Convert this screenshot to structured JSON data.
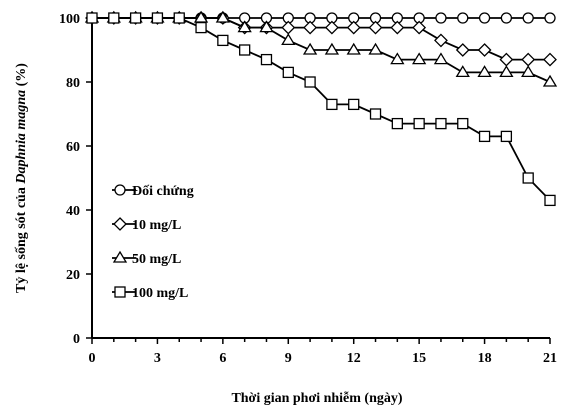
{
  "chart_data": {
    "type": "line",
    "xlabel": "Thời gian phơi nhiễm (ngày)",
    "ylabel_parts": [
      "Tỷ lệ sống sót của ",
      "Daphnia magna",
      " (%)"
    ],
    "xlim": [
      0,
      21
    ],
    "ylim": [
      0,
      100
    ],
    "xticks": [
      0,
      3,
      6,
      9,
      12,
      15,
      18,
      21
    ],
    "yticks": [
      0,
      20,
      40,
      60,
      80,
      100
    ],
    "grid": false,
    "legend_position": "middle-left",
    "series": [
      {
        "name": "Đối chứng",
        "marker": "circle",
        "x": [
          0,
          1,
          2,
          3,
          4,
          5,
          6,
          7,
          8,
          9,
          10,
          11,
          12,
          13,
          14,
          15,
          16,
          17,
          18,
          19,
          20,
          21
        ],
        "values": [
          100,
          100,
          100,
          100,
          100,
          100,
          100,
          100,
          100,
          100,
          100,
          100,
          100,
          100,
          100,
          100,
          100,
          100,
          100,
          100,
          100,
          100
        ]
      },
      {
        "name": "10 mg/L",
        "marker": "diamond",
        "x": [
          0,
          1,
          2,
          3,
          4,
          5,
          6,
          7,
          8,
          9,
          10,
          11,
          12,
          13,
          14,
          15,
          16,
          17,
          18,
          19,
          20,
          21
        ],
        "values": [
          100,
          100,
          100,
          100,
          100,
          100,
          100,
          97,
          97,
          97,
          97,
          97,
          97,
          97,
          97,
          97,
          93,
          90,
          90,
          87,
          87,
          87
        ]
      },
      {
        "name": "50 mg/L",
        "marker": "triangle",
        "x": [
          0,
          1,
          2,
          3,
          4,
          5,
          6,
          7,
          8,
          9,
          10,
          11,
          12,
          13,
          14,
          15,
          16,
          17,
          18,
          19,
          20,
          21
        ],
        "values": [
          100,
          100,
          100,
          100,
          100,
          100,
          100,
          97,
          97,
          93,
          90,
          90,
          90,
          90,
          87,
          87,
          87,
          83,
          83,
          83,
          83,
          80
        ]
      },
      {
        "name": "100 mg/L",
        "marker": "square",
        "x": [
          0,
          1,
          2,
          3,
          4,
          5,
          6,
          7,
          8,
          9,
          10,
          11,
          12,
          13,
          14,
          15,
          16,
          17,
          18,
          19,
          20,
          21
        ],
        "values": [
          100,
          100,
          100,
          100,
          100,
          97,
          93,
          90,
          87,
          83,
          80,
          73,
          73,
          70,
          67,
          67,
          67,
          67,
          63,
          63,
          50,
          43
        ]
      }
    ]
  }
}
